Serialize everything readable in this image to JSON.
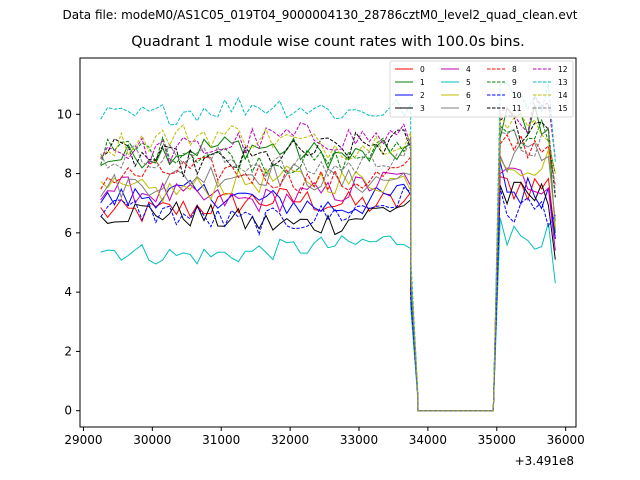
{
  "figure": {
    "suptitle": "Data file: modeM0/AS1C05_019T04_9000004130_28786cztM0_level2_quad_clean.evt",
    "title": "Quadrant 1 module wise count rates with 100.0s bins."
  },
  "chart_data": {
    "type": "line",
    "title": "Quadrant 1 module wise count rates with 100.0s bins.",
    "xlabel": "",
    "ylabel": "",
    "x_offset_label": "+3.491e8",
    "xlim": [
      28950,
      36150
    ],
    "ylim": [
      -0.55,
      11.9
    ],
    "x_ticks": [
      29000,
      30000,
      31000,
      32000,
      33000,
      34000,
      35000,
      36000
    ],
    "x_tick_labels": [
      "29000",
      "30000",
      "31000",
      "32000",
      "33000",
      "34000",
      "35000",
      "36000"
    ],
    "y_ticks": [
      0,
      2,
      4,
      6,
      8,
      10
    ],
    "y_tick_labels": [
      "0",
      "2",
      "4",
      "6",
      "8",
      "10"
    ],
    "grid": false,
    "legend": {
      "placement": "top-right",
      "columns": 4
    },
    "segments": {
      "a": {
        "start": 29250,
        "end": 33750,
        "step": 100
      },
      "gap_levels_at": [
        33750,
        33850
      ],
      "zero_from": 33850,
      "zero_to": 34950,
      "b": {
        "start": 35050,
        "end": 35850,
        "step": 100
      }
    },
    "series": [
      {
        "name": "0",
        "color": "#ff0000",
        "dash": "solid",
        "base": 6.9,
        "amp": 0.45,
        "gap_levels": [
          4.0,
          0.6
        ],
        "post_start": 7.9,
        "b_mean": 7.6,
        "end": 5.8
      },
      {
        "name": "1",
        "color": "#008000",
        "dash": "solid",
        "base": 8.7,
        "amp": 0.45,
        "gap_levels": [
          4.5,
          0.6
        ],
        "post_start": 9.2,
        "b_mean": 9.8,
        "end": 6.0
      },
      {
        "name": "2",
        "color": "#0000ff",
        "dash": "solid",
        "base": 7.1,
        "amp": 0.45,
        "gap_levels": [
          4.0,
          0.6
        ],
        "post_start": 8.4,
        "b_mean": 7.4,
        "end": 5.8
      },
      {
        "name": "3",
        "color": "#000000",
        "dash": "solid",
        "base": 6.5,
        "amp": 0.45,
        "gap_levels": [
          4.0,
          0.6
        ],
        "post_start": 7.6,
        "b_mean": 7.2,
        "end": 5.1
      },
      {
        "name": "4",
        "color": "#bf00bf",
        "dash": "solid",
        "base": 7.3,
        "amp": 0.45,
        "gap_levels": [
          4.2,
          0.6
        ],
        "post_start": 8.0,
        "b_mean": 7.8,
        "end": 5.4
      },
      {
        "name": "5",
        "color": "#00bfbf",
        "dash": "solid",
        "base": 5.4,
        "amp": 0.35,
        "gap_levels": [
          3.5,
          0.5
        ],
        "post_start": 6.5,
        "b_mean": 5.9,
        "end": 4.3
      },
      {
        "name": "6",
        "color": "#bfbf00",
        "dash": "solid",
        "base": 7.6,
        "amp": 0.45,
        "gap_levels": [
          4.2,
          0.6
        ],
        "post_start": 8.5,
        "b_mean": 8.4,
        "end": 6.2
      },
      {
        "name": "7",
        "color": "#808080",
        "dash": "solid",
        "base": 7.8,
        "amp": 0.45,
        "gap_levels": [
          4.3,
          0.6
        ],
        "post_start": 8.6,
        "b_mean": 8.6,
        "end": 6.4
      },
      {
        "name": "8",
        "color": "#ff0000",
        "dash": "dashed",
        "base": 7.9,
        "amp": 0.45,
        "gap_levels": [
          4.4,
          0.6
        ],
        "post_start": 9.0,
        "b_mean": 9.0,
        "end": 7.6
      },
      {
        "name": "9",
        "color": "#008000",
        "dash": "dashed",
        "base": 8.6,
        "amp": 0.45,
        "gap_levels": [
          4.6,
          0.6
        ],
        "post_start": 9.6,
        "b_mean": 9.4,
        "end": 8.0
      },
      {
        "name": "10",
        "color": "#0000ff",
        "dash": "dashed",
        "base": 6.6,
        "amp": 0.45,
        "gap_levels": [
          3.8,
          0.6
        ],
        "post_start": 7.5,
        "b_mean": 6.8,
        "end": 6.6
      },
      {
        "name": "11",
        "color": "#000000",
        "dash": "dashed",
        "base": 8.6,
        "amp": 0.5,
        "gap_levels": [
          4.6,
          0.6
        ],
        "post_start": 9.8,
        "b_mean": 9.6,
        "end": 7.2
      },
      {
        "name": "12",
        "color": "#bf00bf",
        "dash": "dashed",
        "base": 9.0,
        "amp": 0.5,
        "gap_levels": [
          4.8,
          0.7
        ],
        "post_start": 10.1,
        "b_mean": 10.0,
        "end": 8.5
      },
      {
        "name": "13",
        "color": "#00bfbf",
        "dash": "dashed",
        "base": 10.1,
        "amp": 0.4,
        "gap_levels": [
          5.2,
          0.8
        ],
        "post_start": 11.0,
        "b_mean": 10.6,
        "end": 8.4
      },
      {
        "name": "14",
        "color": "#bfbf00",
        "dash": "dashed",
        "base": 9.1,
        "amp": 0.45,
        "gap_levels": [
          4.8,
          0.7
        ],
        "post_start": 10.0,
        "b_mean": 9.6,
        "end": 8.0
      },
      {
        "name": "15",
        "color": "#808080",
        "dash": "dashed",
        "base": 8.4,
        "amp": 0.45,
        "gap_levels": [
          4.5,
          0.6
        ],
        "post_start": 9.4,
        "b_mean": 9.0,
        "end": 7.4
      }
    ]
  }
}
